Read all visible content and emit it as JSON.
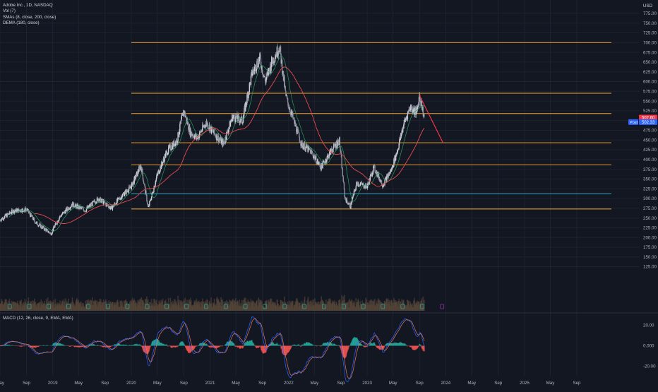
{
  "header": {
    "symbol_line": "Adobe Inc., 1D, NASDAQ",
    "indicators": [
      "Vol (7)",
      "SMAs (8, close, 200, close)",
      "DEMA (180, close)"
    ],
    "currency": "USD"
  },
  "macd_label": "MACD (12, 26, close, 9, EMA, EMA)",
  "price_axis": {
    "ticks": [
      "775.00",
      "750.00",
      "725.00",
      "700.00",
      "675.00",
      "650.00",
      "625.00",
      "600.00",
      "575.00",
      "550.00",
      "525.00",
      "500.00",
      "475.00",
      "450.00",
      "425.00",
      "400.00",
      "375.00",
      "350.00",
      "325.00",
      "300.00",
      "275.00",
      "250.00",
      "225.00",
      "200.00",
      "175.00",
      "150.00",
      "125.00"
    ],
    "badges": [
      {
        "text": "507.60",
        "color": "#f23645"
      },
      {
        "text": "502.33",
        "color": "#2962ff"
      },
      {
        "text": "Post",
        "color": "#2962ff"
      }
    ]
  },
  "macd_axis": {
    "ticks": [
      "20.00",
      "0.000",
      "-20.00"
    ]
  },
  "time_axis": {
    "labels": [
      "May",
      "Sep",
      "2019",
      "May",
      "Sep",
      "2020",
      "May",
      "Sep",
      "2021",
      "May",
      "Sep",
      "2022",
      "May",
      "Sep",
      "2023",
      "May",
      "Sep",
      "2024",
      "May",
      "Sep",
      "2025",
      "May",
      "Sep"
    ]
  },
  "chart_data": {
    "type": "candlestick",
    "symbol": "Adobe Inc.",
    "interval": "1D",
    "exchange": "NASDAQ",
    "y_range": [
      112,
      790
    ],
    "x_range": [
      "2018-05",
      "2025-12"
    ],
    "horizontal_levels": [
      {
        "price": 700,
        "color": "#f0a430"
      },
      {
        "price": 570,
        "color": "#f0a430"
      },
      {
        "price": 518,
        "color": "#f0a430"
      },
      {
        "price": 443,
        "color": "#f0a430"
      },
      {
        "price": 386,
        "color": "#f0a430"
      },
      {
        "price": 312,
        "color": "#26a6c9"
      },
      {
        "price": 273,
        "color": "#f0a430"
      }
    ],
    "trend_line": {
      "from": [
        "2023-08-31",
        566
      ],
      "to": [
        "2023-12-20",
        442
      ],
      "color": "#f23645"
    },
    "price_path": [
      [
        "2018-05-01",
        245
      ],
      [
        "2018-07-01",
        268
      ],
      [
        "2018-09-01",
        272
      ],
      [
        "2018-10-15",
        238
      ],
      [
        "2018-12-24",
        210
      ],
      [
        "2019-02-01",
        252
      ],
      [
        "2019-04-01",
        285
      ],
      [
        "2019-06-01",
        270
      ],
      [
        "2019-08-01",
        300
      ],
      [
        "2019-10-01",
        275
      ],
      [
        "2019-11-15",
        305
      ],
      [
        "2020-01-01",
        330
      ],
      [
        "2020-02-15",
        385
      ],
      [
        "2020-03-20",
        275
      ],
      [
        "2020-05-01",
        360
      ],
      [
        "2020-06-15",
        420
      ],
      [
        "2020-08-01",
        450
      ],
      [
        "2020-09-01",
        525
      ],
      [
        "2020-10-01",
        470
      ],
      [
        "2020-11-01",
        455
      ],
      [
        "2020-12-15",
        495
      ],
      [
        "2021-01-15",
        470
      ],
      [
        "2021-03-05",
        440
      ],
      [
        "2021-04-15",
        510
      ],
      [
        "2021-06-01",
        500
      ],
      [
        "2021-07-15",
        620
      ],
      [
        "2021-08-20",
        660
      ],
      [
        "2021-09-15",
        600
      ],
      [
        "2021-10-15",
        650
      ],
      [
        "2021-11-20",
        690
      ],
      [
        "2021-12-20",
        560
      ],
      [
        "2022-01-25",
        500
      ],
      [
        "2022-03-01",
        440
      ],
      [
        "2022-04-15",
        420
      ],
      [
        "2022-06-01",
        380
      ],
      [
        "2022-07-15",
        420
      ],
      [
        "2022-08-25",
        450
      ],
      [
        "2022-09-20",
        300
      ],
      [
        "2022-10-15",
        280
      ],
      [
        "2022-11-15",
        340
      ],
      [
        "2023-01-01",
        330
      ],
      [
        "2023-02-01",
        380
      ],
      [
        "2023-03-15",
        335
      ],
      [
        "2023-04-25",
        375
      ],
      [
        "2023-05-25",
        430
      ],
      [
        "2023-06-20",
        490
      ],
      [
        "2023-07-20",
        535
      ],
      [
        "2023-08-20",
        520
      ],
      [
        "2023-09-01",
        566
      ],
      [
        "2023-09-25",
        505
      ]
    ],
    "indicators": [
      {
        "name": "SMA 8",
        "color": "#2a9d60"
      },
      {
        "name": "SMA 200",
        "color": "#e84b4b"
      },
      {
        "name": "DEMA 180",
        "color": "#b02a3a"
      }
    ],
    "macd": {
      "y_range": [
        -30,
        32
      ],
      "signal_color": "#2962ff",
      "macd_color": "#ffffff"
    }
  }
}
